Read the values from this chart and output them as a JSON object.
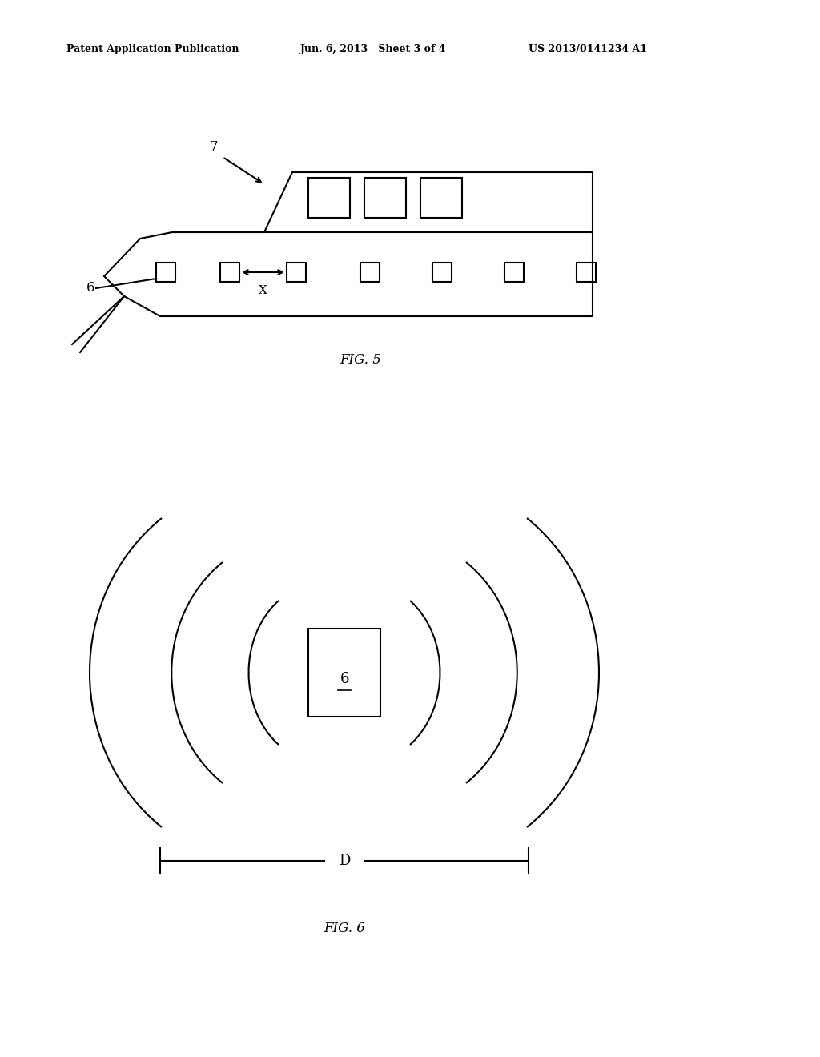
{
  "header_left": "Patent Application Publication",
  "header_mid": "Jun. 6, 2013   Sheet 3 of 4",
  "header_right": "US 2013/0141234 A1",
  "fig5_label": "FIG. 5",
  "fig6_label": "FIG. 6",
  "label_7": "7",
  "label_6_ship": "6",
  "label_X": "X",
  "label_6_rfid": "6",
  "label_D": "D",
  "bg_color": "#ffffff",
  "line_color": "#000000"
}
